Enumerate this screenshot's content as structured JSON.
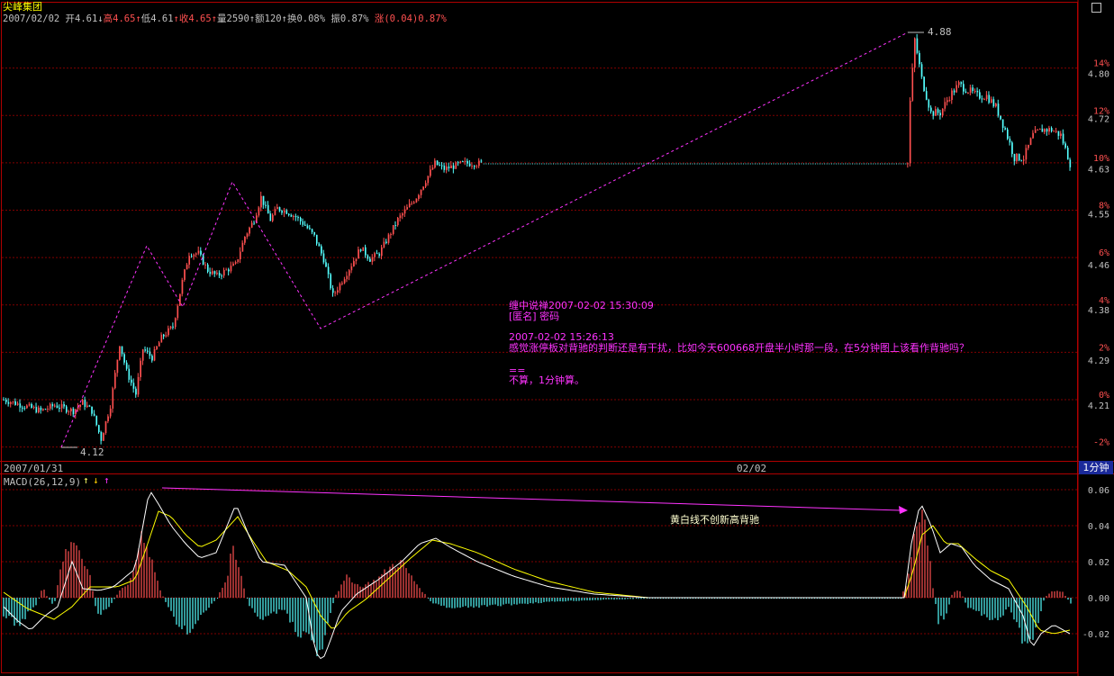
{
  "header": {
    "title": "尖峰集团",
    "info": [
      {
        "text": "2007/02/02 开4.61",
        "c": "w"
      },
      {
        "text": "↓",
        "c": "w"
      },
      {
        "text": "高4.65",
        "c": "r"
      },
      {
        "text": "↑",
        "c": "r"
      },
      {
        "text": "低4.61",
        "c": "w"
      },
      {
        "text": "↑",
        "c": "r"
      },
      {
        "text": "收4.65",
        "c": "r"
      },
      {
        "text": "↑",
        "c": "r"
      },
      {
        "text": "量2590",
        "c": "w"
      },
      {
        "text": "↑",
        "c": "w"
      },
      {
        "text": "额120",
        "c": "w"
      },
      {
        "text": "↑",
        "c": "w"
      },
      {
        "text": "换0.08%",
        "c": "w"
      },
      {
        "text": " 振0.87%",
        "c": "w"
      },
      {
        "text": " 涨(0.04)0.87%",
        "c": "r"
      }
    ]
  },
  "axis": {
    "date_left": "2007/01/31",
    "date_mid": "02/02",
    "period": "1分钟",
    "pct_labels": [
      "14%",
      "12%",
      "10%",
      "8%",
      "6%",
      "4%",
      "2%",
      "0%",
      "-2%"
    ],
    "price_labels": [
      "4.80",
      "4.72",
      "4.63",
      "4.55",
      "4.46",
      "4.38",
      "4.29",
      "4.21"
    ],
    "macd_labels": [
      "0.06",
      "0.04",
      "0.02",
      "0.00",
      "-0.02"
    ]
  },
  "price_chart": {
    "peak_label": "4.88",
    "low_label": "4.12"
  },
  "annotation": {
    "line1": "缠中说禅2007-02-02 15:30:09",
    "line2": "[匿名] 密码",
    "line3": "2007-02-02 15:26:13",
    "line4": "感觉涨停板对背驰的判断还是有干扰，比如今天600668开盘半小时那一段，在5分钟图上该看作背驰吗？",
    "line5": "==",
    "line6": "不算，1分钟算。"
  },
  "macd": {
    "label": "MACD(26,12,9)",
    "arrow_up": "↑",
    "arrow_down": "↓",
    "arrow_up2": "↑",
    "note": "黄白线不创新高背驰"
  },
  "colors": {
    "up": "#ff5050",
    "down": "#54ffff",
    "zigzag": "#ff33ff",
    "dif": "#ffffff",
    "dea": "#ffff00",
    "grid": "#800000"
  }
}
